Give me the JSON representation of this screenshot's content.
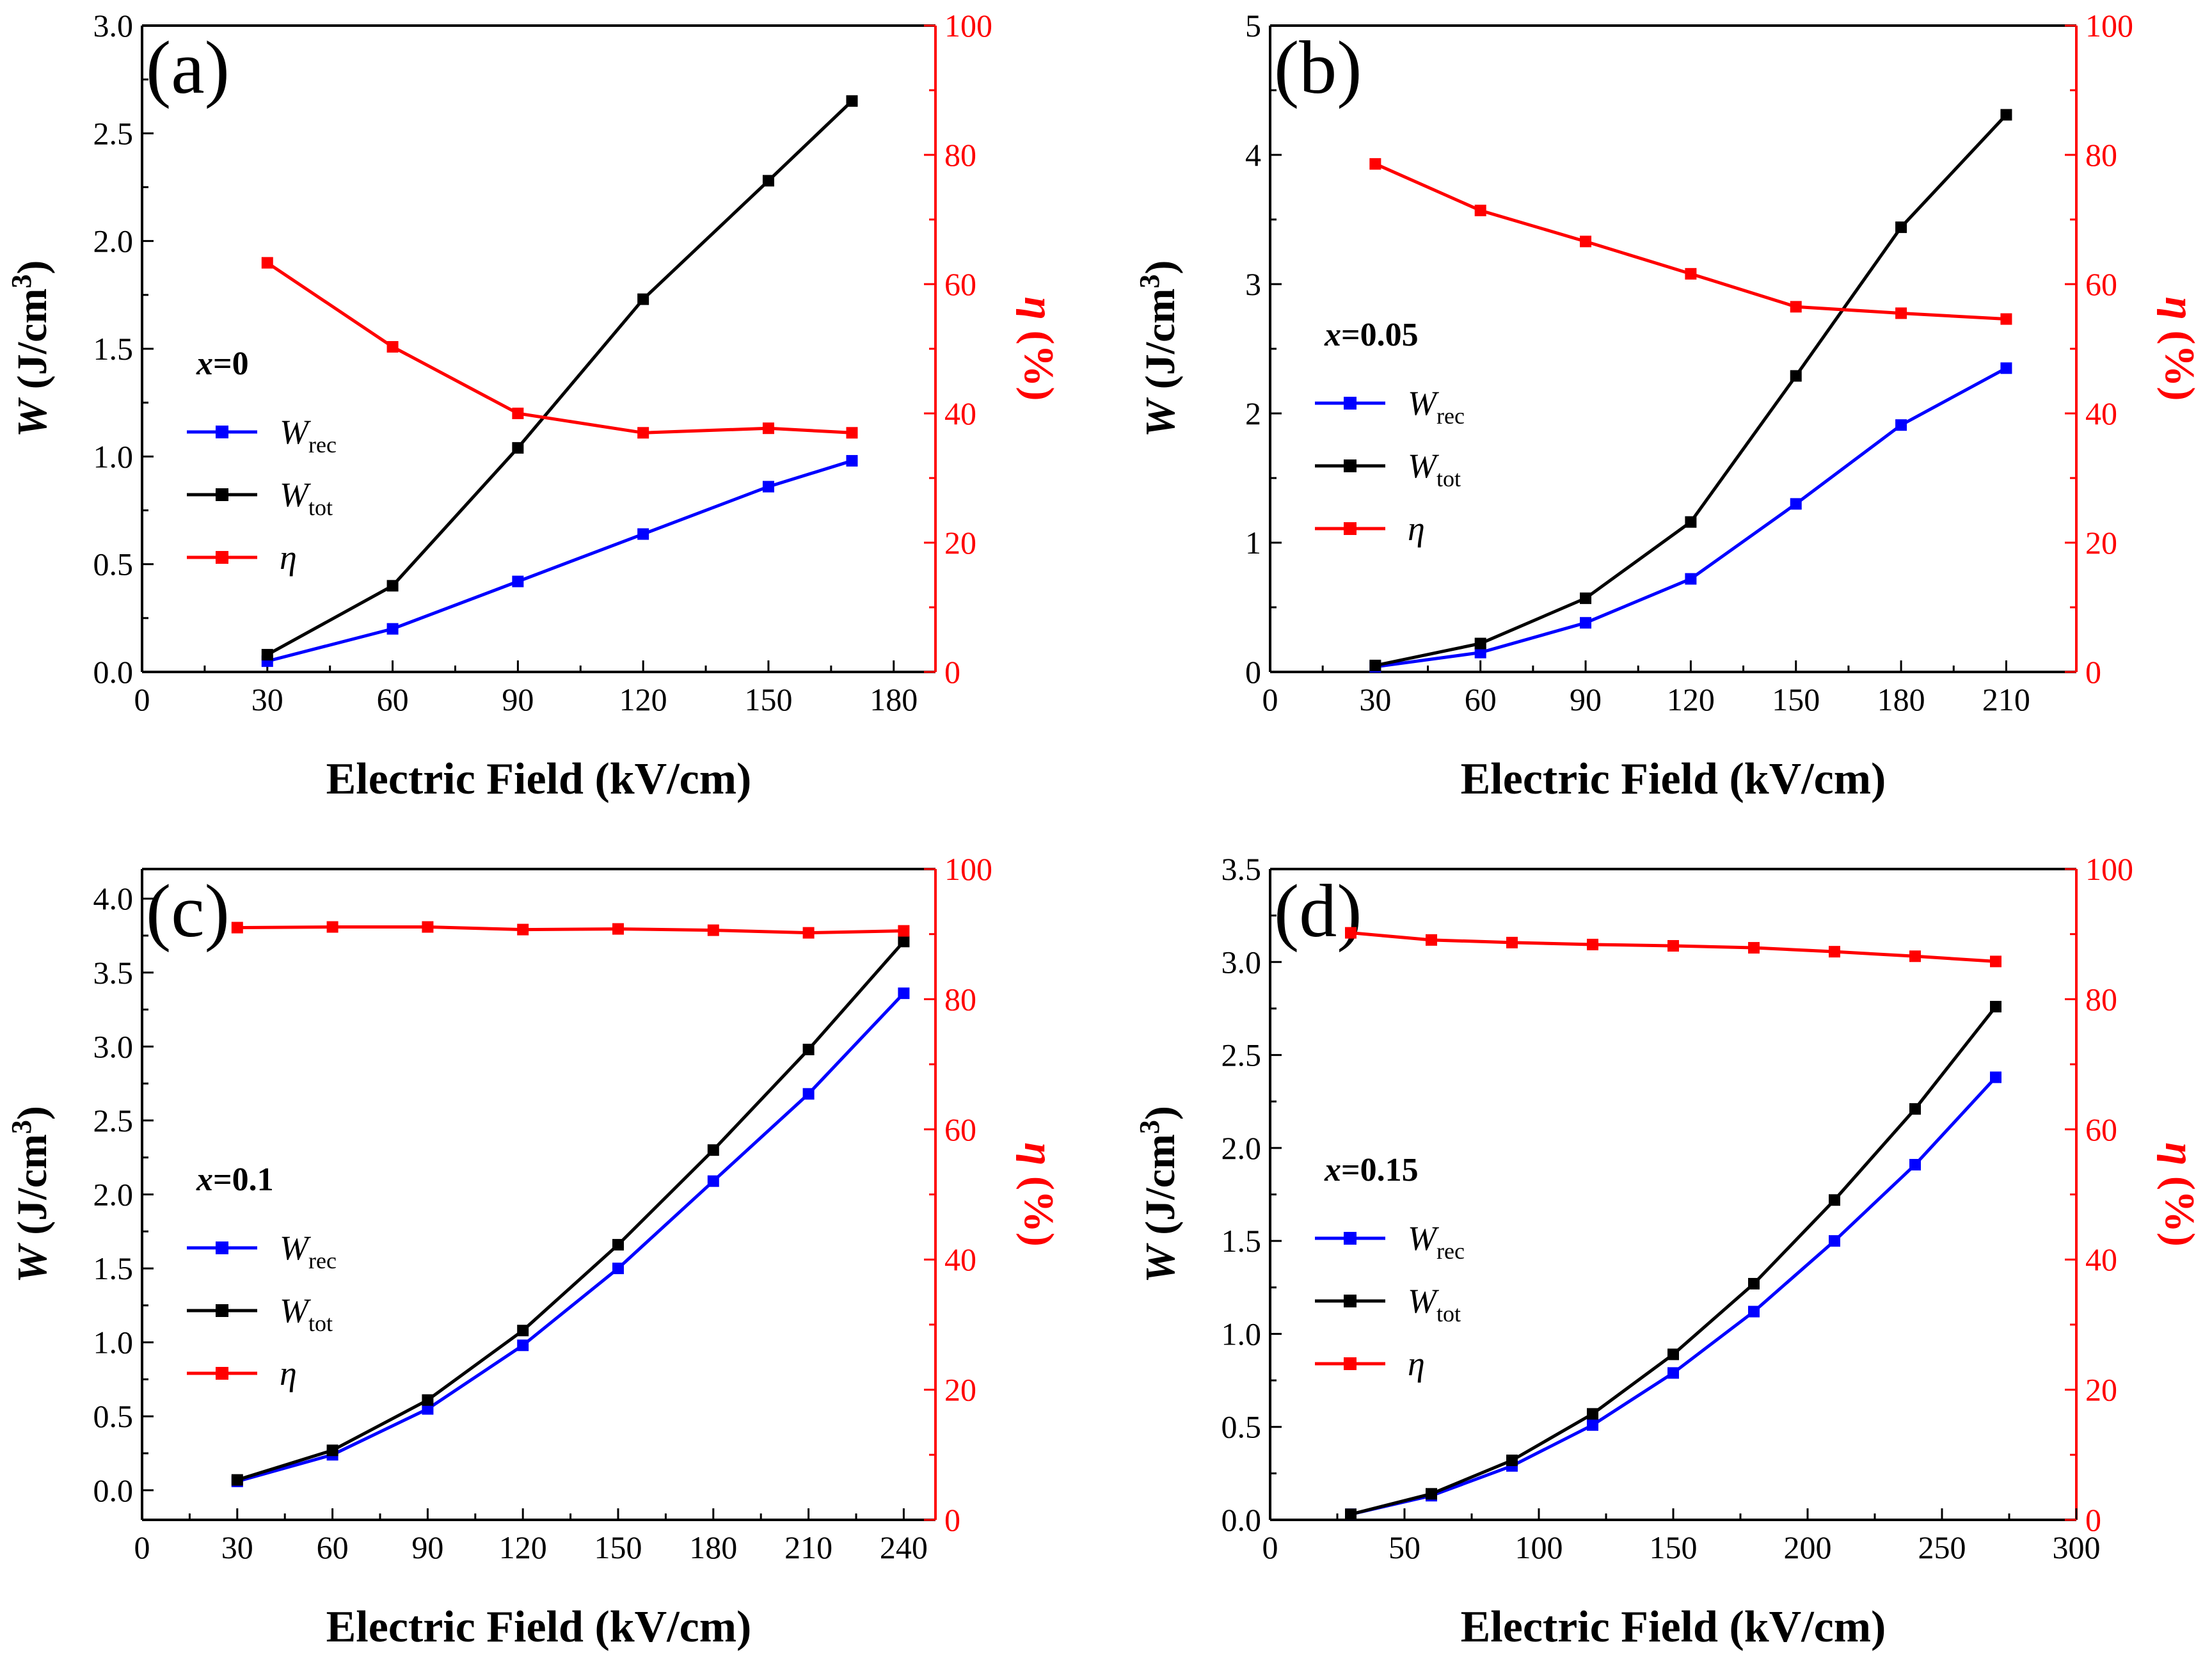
{
  "chart_data": [
    {
      "type": "line",
      "panel_label": "(a)",
      "annotation": "x=0",
      "xlabel": "Electric Field (kV/cm)",
      "ylabel": "W (J/cm3)",
      "y2label": "η (%)",
      "xlim": [
        0,
        190
      ],
      "xticks": [
        0,
        30,
        60,
        90,
        120,
        150,
        180
      ],
      "ylim": [
        0,
        3.0
      ],
      "yticks": [
        "0.0",
        "0.5",
        "1.0",
        "1.5",
        "2.0",
        "2.5",
        "3.0"
      ],
      "y2lim": [
        0,
        100
      ],
      "y2ticks": [
        0,
        20,
        40,
        60,
        80,
        100
      ],
      "grid": false,
      "legend_position": "center-left",
      "x": [
        30,
        60,
        90,
        120,
        150,
        170
      ],
      "series": [
        {
          "name": "W",
          "sub": "rec",
          "color": "#0000ff",
          "axis": "left",
          "values": [
            0.05,
            0.2,
            0.42,
            0.64,
            0.86,
            0.98
          ]
        },
        {
          "name": "W",
          "sub": "tot",
          "color": "#000000",
          "axis": "left",
          "values": [
            0.08,
            0.4,
            1.04,
            1.73,
            2.28,
            2.65
          ]
        },
        {
          "name": "η",
          "sub": "",
          "color": "#ff0000",
          "axis": "right",
          "values": [
            63.3,
            50.3,
            40.0,
            37.0,
            37.7,
            37.0
          ]
        }
      ]
    },
    {
      "type": "line",
      "panel_label": "(b)",
      "annotation": "x=0.05",
      "xlabel": "Electric Field (kV/cm)",
      "ylabel": "W (J/cm3)",
      "y2label": "η (%)",
      "xlim": [
        0,
        230
      ],
      "xticks": [
        0,
        30,
        60,
        90,
        120,
        150,
        180,
        210
      ],
      "ylim": [
        0,
        5
      ],
      "yticks": [
        "0",
        "1",
        "2",
        "3",
        "4",
        "5"
      ],
      "y2lim": [
        0,
        100
      ],
      "y2ticks": [
        0,
        20,
        40,
        60,
        80,
        100
      ],
      "grid": false,
      "legend_position": "center-left",
      "x": [
        30,
        60,
        90,
        120,
        150,
        180,
        210
      ],
      "series": [
        {
          "name": "W",
          "sub": "rec",
          "color": "#0000ff",
          "axis": "left",
          "values": [
            0.04,
            0.15,
            0.38,
            0.72,
            1.3,
            1.91,
            2.35
          ]
        },
        {
          "name": "W",
          "sub": "tot",
          "color": "#000000",
          "axis": "left",
          "values": [
            0.05,
            0.22,
            0.57,
            1.16,
            2.29,
            3.44,
            4.31
          ]
        },
        {
          "name": "η",
          "sub": "",
          "color": "#ff0000",
          "axis": "right",
          "values": [
            78.6,
            71.4,
            66.6,
            61.6,
            56.5,
            55.5,
            54.6
          ]
        }
      ]
    },
    {
      "type": "line",
      "panel_label": "(c)",
      "annotation": "x=0.1",
      "xlabel": "Electric Field (kV/cm)",
      "ylabel": "W (J/cm3)",
      "y2label": "η (%)",
      "xlim": [
        0,
        250
      ],
      "xticks": [
        0,
        30,
        60,
        90,
        120,
        150,
        180,
        210,
        240
      ],
      "ylim": [
        -0.2,
        4.2
      ],
      "yticks": [
        "0.0",
        "0.5",
        "1.0",
        "1.5",
        "2.0",
        "2.5",
        "3.0",
        "3.5",
        "4.0"
      ],
      "y2lim": [
        0,
        100
      ],
      "y2ticks": [
        0,
        20,
        40,
        60,
        80,
        100
      ],
      "grid": false,
      "legend_position": "bottom-left",
      "x": [
        30,
        60,
        90,
        120,
        150,
        180,
        210,
        240
      ],
      "series": [
        {
          "name": "W",
          "sub": "rec",
          "color": "#0000ff",
          "axis": "left",
          "values": [
            0.06,
            0.24,
            0.55,
            0.98,
            1.5,
            2.09,
            2.68,
            3.36
          ]
        },
        {
          "name": "W",
          "sub": "tot",
          "color": "#000000",
          "axis": "left",
          "values": [
            0.07,
            0.27,
            0.61,
            1.08,
            1.66,
            2.3,
            2.98,
            3.71
          ]
        },
        {
          "name": "η",
          "sub": "",
          "color": "#ff0000",
          "axis": "right",
          "values": [
            91.0,
            91.1,
            91.1,
            90.7,
            90.8,
            90.6,
            90.2,
            90.5
          ]
        }
      ]
    },
    {
      "type": "line",
      "panel_label": "(d)",
      "annotation": "x=0.15",
      "xlabel": "Electric Field (kV/cm)",
      "ylabel": "W (J/cm3)",
      "y2label": "η (%)",
      "xlim": [
        0,
        300
      ],
      "xticks": [
        0,
        50,
        100,
        150,
        200,
        250,
        300
      ],
      "ylim": [
        0,
        3.5
      ],
      "yticks": [
        "0.0",
        "0.5",
        "1.0",
        "1.5",
        "2.0",
        "2.5",
        "3.0",
        "3.5"
      ],
      "y2lim": [
        0,
        100
      ],
      "y2ticks": [
        0,
        20,
        40,
        60,
        80,
        100
      ],
      "grid": false,
      "legend_position": "center-left",
      "x": [
        30,
        60,
        90,
        120,
        150,
        180,
        210,
        240,
        270
      ],
      "series": [
        {
          "name": "W",
          "sub": "rec",
          "color": "#0000ff",
          "axis": "left",
          "values": [
            0.03,
            0.13,
            0.29,
            0.51,
            0.79,
            1.12,
            1.5,
            1.91,
            2.38
          ]
        },
        {
          "name": "W",
          "sub": "tot",
          "color": "#000000",
          "axis": "left",
          "values": [
            0.03,
            0.14,
            0.32,
            0.57,
            0.89,
            1.27,
            1.72,
            2.21,
            2.76
          ]
        },
        {
          "name": "η",
          "sub": "",
          "color": "#ff0000",
          "axis": "right",
          "values": [
            90.2,
            89.1,
            88.7,
            88.4,
            88.2,
            87.9,
            87.3,
            86.6,
            85.8
          ]
        }
      ]
    }
  ]
}
